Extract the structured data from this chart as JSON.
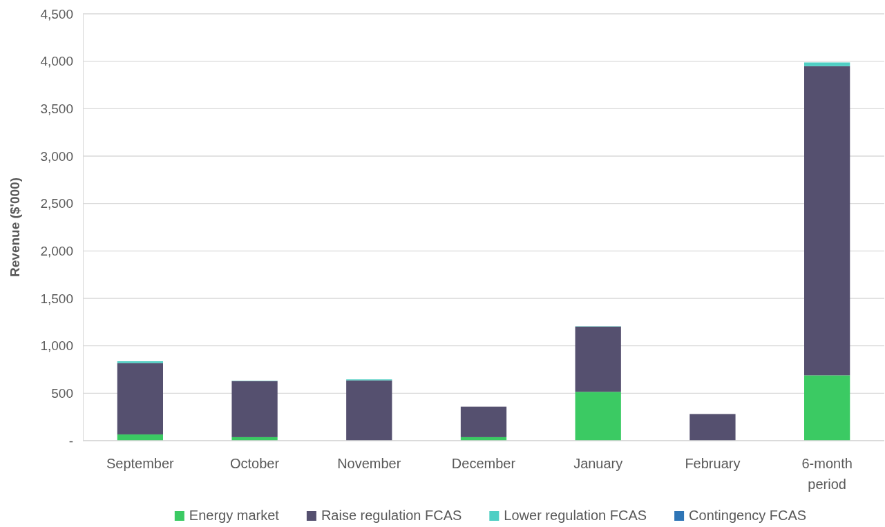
{
  "chart_data": {
    "type": "bar",
    "stacked": true,
    "ylabel": "Revenue ($'000)",
    "categories": [
      "September",
      "October",
      "November",
      "December",
      "January",
      "February",
      "6-month period"
    ],
    "series": [
      {
        "name": "Energy market",
        "color": "#3bca63",
        "values": [
          66,
          37,
          null,
          37,
          515,
          null,
          689
        ]
      },
      {
        "name": "Raise regulation FCAS",
        "color": "#55506f",
        "values": [
          752,
          591,
          636,
          322,
          688,
          281,
          3259
        ]
      },
      {
        "name": "Lower regulation FCAS",
        "color": "#4fcfc4",
        "values": [
          19,
          3,
          10,
          null,
          3,
          null,
          39
        ]
      },
      {
        "name": "Contingency FCAS",
        "color": "#2e75b6",
        "values": [
          0,
          0,
          0,
          0,
          0,
          0,
          0
        ]
      }
    ],
    "ylim": [
      0,
      4500
    ],
    "yticks": [
      {
        "value": 0,
        "label": "-"
      },
      {
        "value": 500,
        "label": "500"
      },
      {
        "value": 1000,
        "label": "1,000"
      },
      {
        "value": 1500,
        "label": "1,500"
      },
      {
        "value": 2000,
        "label": "2,000"
      },
      {
        "value": 2500,
        "label": "2,500"
      },
      {
        "value": 3000,
        "label": "3,000"
      },
      {
        "value": 3500,
        "label": "3,500"
      },
      {
        "value": 4000,
        "label": "4,000"
      },
      {
        "value": 4500,
        "label": "4,500"
      }
    ],
    "grid": "y",
    "legend": "bottom"
  }
}
